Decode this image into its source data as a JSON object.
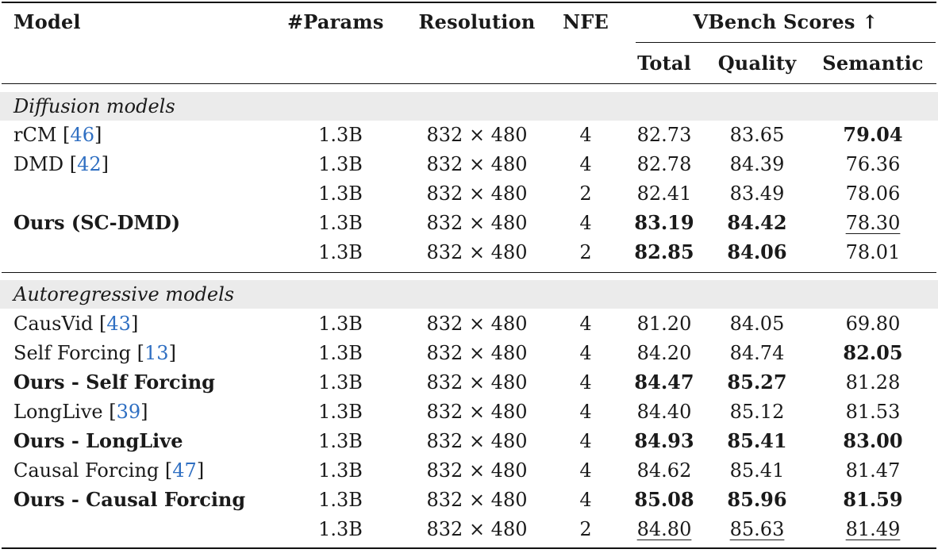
{
  "header": {
    "model": "Model",
    "params": "#Params",
    "resolution": "Resolution",
    "nfe": "NFE",
    "vbench": "VBench Scores ↑",
    "total": "Total",
    "quality": "Quality",
    "semantic": "Semantic"
  },
  "sections": [
    {
      "title": "Diffusion models",
      "rows": [
        {
          "name": "rCM",
          "cite": "46",
          "params": "1.3B",
          "res": "832 × 480",
          "nfe": "4",
          "total": "82.73",
          "quality": "83.65",
          "semantic": "79.04"
        },
        {
          "name": "DMD",
          "cite": "42",
          "params": "1.3B",
          "res": "832 × 480",
          "nfe": "4",
          "total": "82.78",
          "quality": "84.39",
          "semantic": "76.36"
        },
        {
          "name": "",
          "cite": "",
          "params": "1.3B",
          "res": "832 × 480",
          "nfe": "2",
          "total": "82.41",
          "quality": "83.49",
          "semantic": "78.06"
        },
        {
          "name": "Ours (SC-DMD)",
          "cite": "",
          "params": "1.3B",
          "res": "832 × 480",
          "nfe": "4",
          "total": "83.19",
          "quality": "84.42",
          "semantic": "78.30"
        },
        {
          "name": "",
          "cite": "",
          "params": "1.3B",
          "res": "832 × 480",
          "nfe": "2",
          "total": "82.85",
          "quality": "84.06",
          "semantic": "78.01"
        }
      ]
    },
    {
      "title": "Autoregressive models",
      "rows": [
        {
          "name": "CausVid",
          "cite": "43",
          "params": "1.3B",
          "res": "832 × 480",
          "nfe": "4",
          "total": "81.20",
          "quality": "84.05",
          "semantic": "69.80"
        },
        {
          "name": "Self Forcing",
          "cite": "13",
          "params": "1.3B",
          "res": "832 × 480",
          "nfe": "4",
          "total": "84.20",
          "quality": "84.74",
          "semantic": "82.05"
        },
        {
          "name": "Ours - Self Forcing",
          "cite": "",
          "params": "1.3B",
          "res": "832 × 480",
          "nfe": "4",
          "total": "84.47",
          "quality": "85.27",
          "semantic": "81.28"
        },
        {
          "name": "LongLive",
          "cite": "39",
          "params": "1.3B",
          "res": "832 × 480",
          "nfe": "4",
          "total": "84.40",
          "quality": "85.12",
          "semantic": "81.53"
        },
        {
          "name": "Ours - LongLive",
          "cite": "",
          "params": "1.3B",
          "res": "832 × 480",
          "nfe": "4",
          "total": "84.93",
          "quality": "85.41",
          "semantic": "83.00"
        },
        {
          "name": "Causal Forcing",
          "cite": "47",
          "params": "1.3B",
          "res": "832 × 480",
          "nfe": "4",
          "total": "84.62",
          "quality": "85.41",
          "semantic": "81.47"
        },
        {
          "name": "Ours - Causal Forcing",
          "cite": "",
          "params": "1.3B",
          "res": "832 × 480",
          "nfe": "4",
          "total": "85.08",
          "quality": "85.96",
          "semantic": "81.59"
        },
        {
          "name": "",
          "cite": "",
          "params": "1.3B",
          "res": "832 × 480",
          "nfe": "2",
          "total": "84.80",
          "quality": "85.63",
          "semantic": "81.49"
        }
      ]
    }
  ]
}
